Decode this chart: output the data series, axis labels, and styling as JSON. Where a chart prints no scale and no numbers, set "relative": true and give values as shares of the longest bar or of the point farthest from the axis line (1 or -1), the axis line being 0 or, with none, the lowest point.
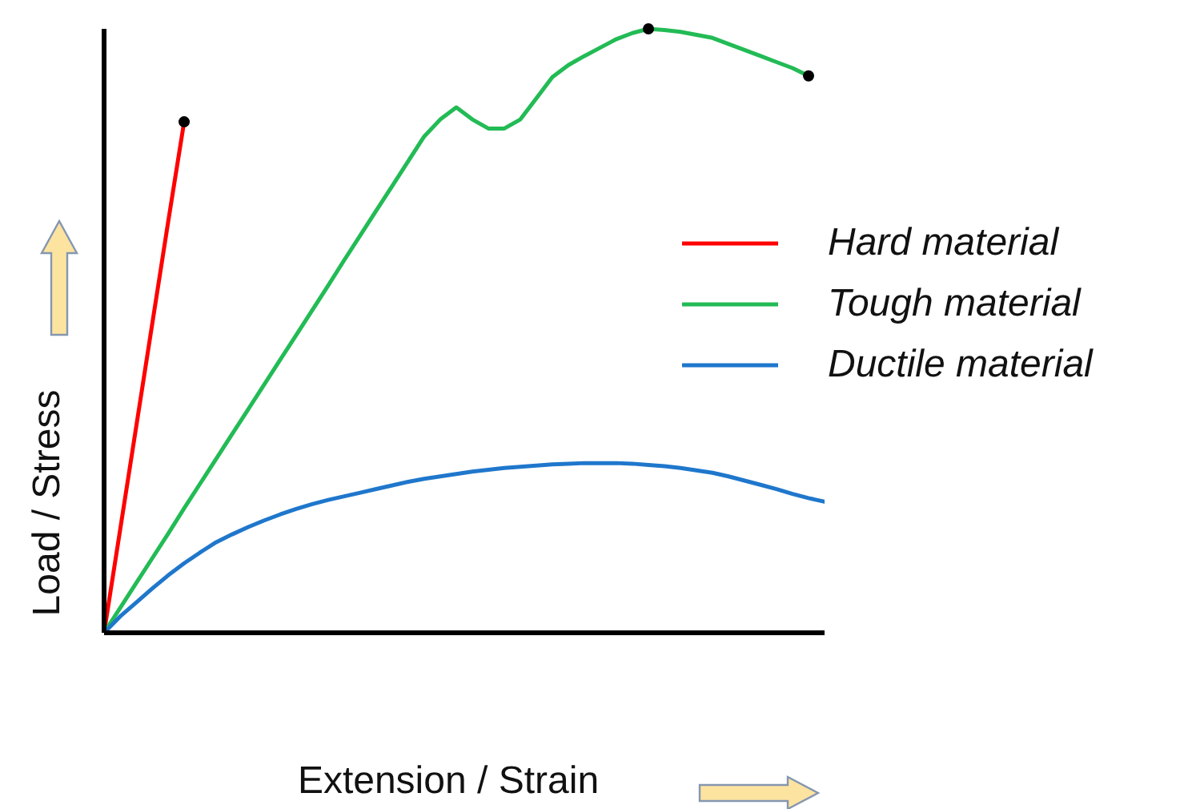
{
  "chart_data": {
    "type": "line",
    "relative": true,
    "xlabel": "Extension / Strain",
    "ylabel": "Load / Stress",
    "legend": "right",
    "categories": [
      null,
      null,
      null,
      null,
      null,
      null,
      null,
      null,
      null,
      null,
      null,
      null,
      null,
      null,
      null,
      null,
      null,
      null,
      null,
      null,
      null,
      null,
      null,
      null,
      null,
      null,
      null,
      null,
      null,
      null,
      null,
      null,
      null,
      null,
      null,
      null,
      null,
      null,
      null,
      null,
      null,
      null,
      null,
      null,
      null,
      null
    ],
    "series": [
      {
        "name": "Hard material",
        "color": "#ff0000",
        "values": [
          0,
          0.17,
          0.34,
          0.51,
          0.68,
          0.846,
          null,
          null,
          null,
          null,
          null,
          null,
          null,
          null,
          null,
          null,
          null,
          null,
          null,
          null,
          null,
          null,
          null,
          null,
          null,
          null,
          null,
          null,
          null,
          null,
          null,
          null,
          null,
          null,
          null,
          null,
          null,
          null,
          null,
          null,
          null,
          null,
          null,
          null,
          null,
          null
        ]
      },
      {
        "name": "Tough material",
        "color": "#22bb55",
        "values": [
          0,
          0.041,
          0.082,
          0.123,
          0.164,
          0.206,
          0.247,
          0.288,
          0.329,
          0.37,
          0.411,
          0.452,
          0.493,
          0.534,
          0.575,
          0.617,
          0.658,
          0.699,
          0.74,
          0.781,
          0.822,
          0.85,
          0.87,
          0.85,
          0.835,
          0.835,
          0.85,
          0.885,
          0.92,
          0.94,
          0.955,
          0.969,
          0.983,
          0.993,
          1,
          0.998,
          0.995,
          0.99,
          0.985,
          0.975,
          0.965,
          0.955,
          0.945,
          0.935,
          0.922,
          null
        ]
      },
      {
        "name": "Ductile material",
        "color": "#1f77cc",
        "values": [
          0,
          0.027,
          0.05,
          0.073,
          0.095,
          0.115,
          0.133,
          0.15,
          0.163,
          0.175,
          0.186,
          0.196,
          0.205,
          0.213,
          0.22,
          0.226,
          0.232,
          0.238,
          0.244,
          0.25,
          0.255,
          0.259,
          0.263,
          0.267,
          0.27,
          0.273,
          0.275,
          0.277,
          0.279,
          0.28,
          0.281,
          0.281,
          0.281,
          0.28,
          0.278,
          0.276,
          0.273,
          0.269,
          0.265,
          0.259,
          0.252,
          0.245,
          0.238,
          0.23,
          0.223,
          0.217
        ]
      }
    ]
  }
}
